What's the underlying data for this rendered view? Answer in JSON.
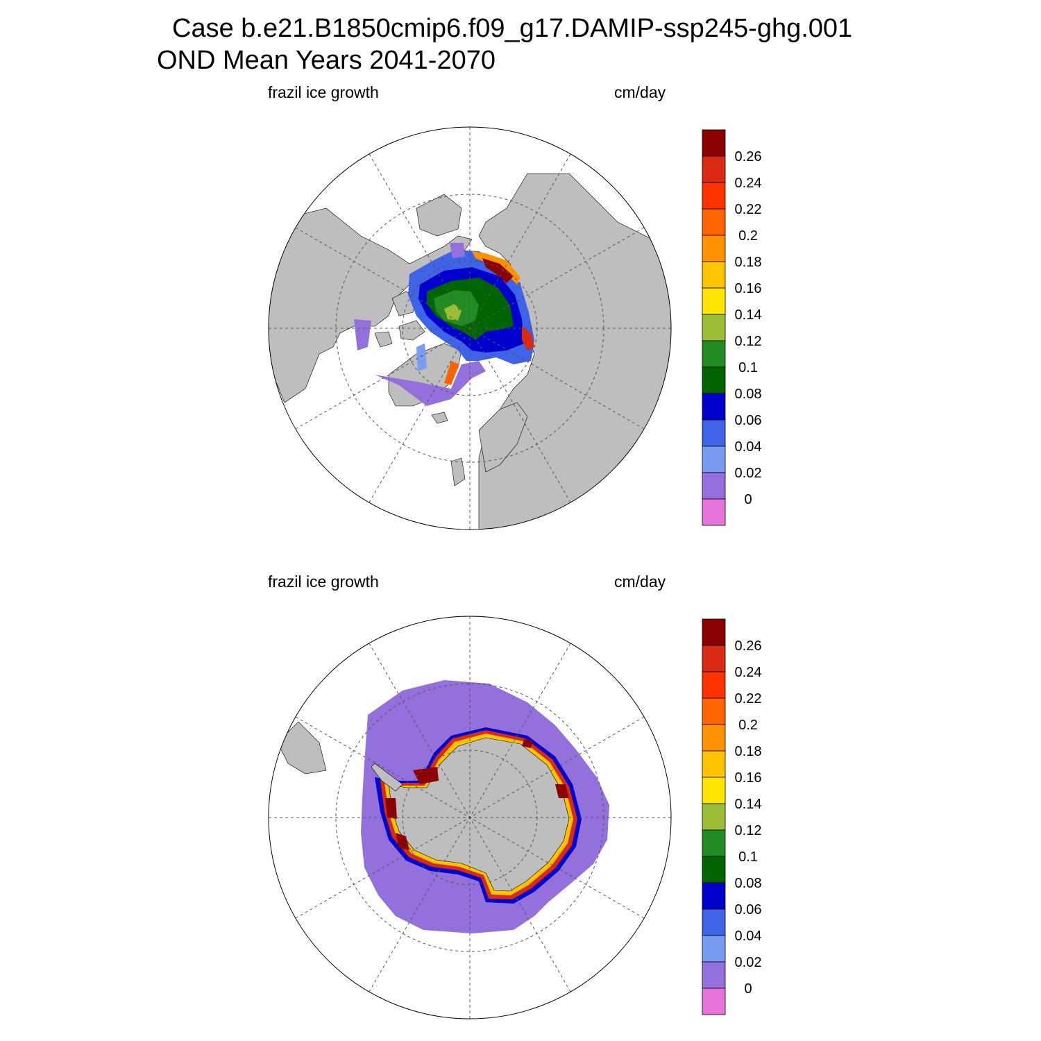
{
  "header": {
    "title_line1": "Case b.e21.B1850cmip6.f09_g17.DAMIP-ssp245-ghg.001",
    "title_line2": "OND Mean   Years 2041-2070"
  },
  "colors": {
    "scale": [
      "#e673d9",
      "#9370db",
      "#779cf0",
      "#3e63e6",
      "#0000cc",
      "#006400",
      "#228b22",
      "#9abd35",
      "#ffe600",
      "#ffc400",
      "#ff9200",
      "#ff6400",
      "#ff3200",
      "#d92a14",
      "#8b0000"
    ],
    "land": "#bebebe",
    "ocean": "#ffffff"
  },
  "chart_data": [
    {
      "type": "heatmap",
      "projection": "north polar stereographic",
      "left_label": "frazil ice growth",
      "right_label": "cm/day",
      "colorbar": {
        "levels": [
          "0",
          "0.02",
          "0.04",
          "0.06",
          "0.08",
          "0.1",
          "0.12",
          "0.14",
          "0.16",
          "0.18",
          "0.2",
          "0.22",
          "0.24",
          "0.26"
        ],
        "values": [
          0,
          0.02,
          0.04,
          0.06,
          0.08,
          0.1,
          0.12,
          0.14,
          0.16,
          0.18,
          0.2,
          0.22,
          0.24,
          0.26
        ]
      },
      "field_summary": "central Arctic basin 0.08-0.14, marginal ice edge up to >0.26, peripheral seas 0-0.06"
    },
    {
      "type": "heatmap",
      "projection": "south polar stereographic",
      "left_label": "frazil ice growth",
      "right_label": "cm/day",
      "colorbar": {
        "levels": [
          "0",
          "0.02",
          "0.04",
          "0.06",
          "0.08",
          "0.1",
          "0.12",
          "0.14",
          "0.16",
          "0.18",
          "0.2",
          "0.22",
          "0.24",
          "0.26"
        ],
        "values": [
          0,
          0.02,
          0.04,
          0.06,
          0.08,
          0.1,
          0.12,
          0.14,
          0.16,
          0.18,
          0.2,
          0.22,
          0.24,
          0.26
        ]
      },
      "field_summary": "open-ocean sea-ice zone 0-0.02, narrow coastal band up to >0.26 around Antarctica"
    }
  ]
}
